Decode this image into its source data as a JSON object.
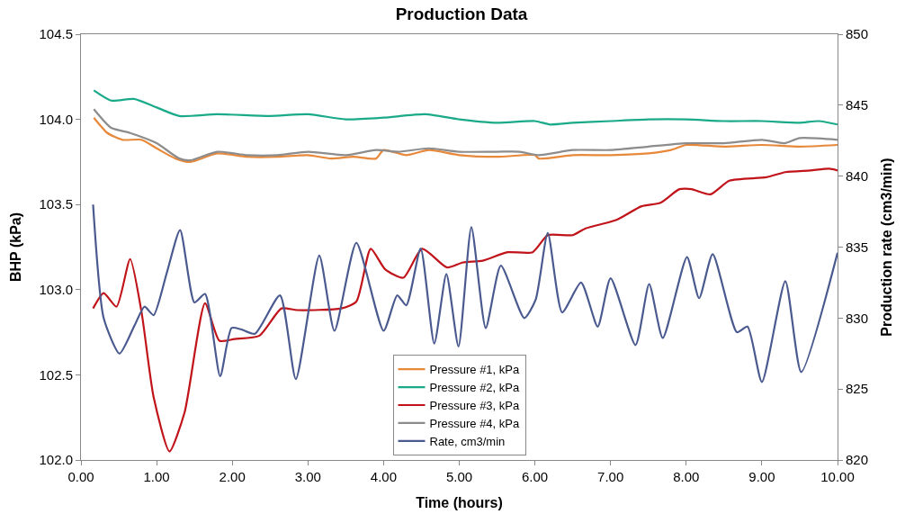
{
  "chart_data": {
    "type": "line",
    "title": "Production Data",
    "xlabel": "Time (hours)",
    "ylabel": "BHP (kPa)",
    "y2label": "Production rate (cm3/min)",
    "xlim": [
      0,
      10
    ],
    "xticks": [
      {
        "value": 0,
        "label": "0.00"
      },
      {
        "value": 1,
        "label": "1.00"
      },
      {
        "value": 2,
        "label": "2.00"
      },
      {
        "value": 3,
        "label": "3.00"
      },
      {
        "value": 4,
        "label": "4.00"
      },
      {
        "value": 5,
        "label": "5.00"
      },
      {
        "value": 6,
        "label": "6.00"
      },
      {
        "value": 7,
        "label": "7.00"
      },
      {
        "value": 8,
        "label": "8.00"
      },
      {
        "value": 9,
        "label": "9.00"
      },
      {
        "value": 10,
        "label": "10.00"
      }
    ],
    "ylim": [
      102,
      104.5
    ],
    "yticks": [
      {
        "value": 102,
        "label": "102.0"
      },
      {
        "value": 102.5,
        "label": "102.5"
      },
      {
        "value": 103,
        "label": "103.0"
      },
      {
        "value": 103.5,
        "label": "103.5"
      },
      {
        "value": 104,
        "label": "104.0"
      },
      {
        "value": 104.5,
        "label": "104.5"
      }
    ],
    "y2lim": [
      820,
      850
    ],
    "y2ticks": [
      820,
      825,
      830,
      835,
      840,
      845,
      850
    ],
    "legend": "bottom",
    "marker": "none",
    "line_style": "solid",
    "series": [
      {
        "name": "Pressure #1, kPa",
        "color": "#e8883a",
        "x": [
          0.17,
          0.35,
          0.55,
          0.8,
          1.0,
          1.25,
          1.45,
          1.8,
          2.2,
          2.6,
          3.0,
          3.3,
          3.6,
          3.9,
          4.0,
          4.3,
          4.6,
          5.0,
          5.5,
          6.0,
          6.05,
          6.5,
          7.0,
          7.5,
          7.8,
          8.0,
          8.5,
          9.0,
          9.5,
          10.0
        ],
        "values": [
          104.01,
          103.92,
          103.88,
          103.88,
          103.83,
          103.77,
          103.75,
          103.8,
          103.78,
          103.78,
          103.79,
          103.77,
          103.78,
          103.77,
          103.82,
          103.79,
          103.82,
          103.79,
          103.78,
          103.79,
          103.77,
          103.79,
          103.79,
          103.8,
          103.82,
          103.85,
          103.84,
          103.85,
          103.84,
          103.85
        ]
      },
      {
        "name": "Pressure #2, kPa",
        "color": "#1aaa8a",
        "x": [
          0.17,
          0.4,
          0.7,
          1.0,
          1.3,
          1.8,
          2.5,
          3.0,
          3.5,
          4.0,
          4.55,
          5.0,
          5.5,
          6.0,
          6.2,
          6.5,
          7.0,
          7.5,
          8.0,
          8.5,
          9.0,
          9.5,
          9.75,
          10.0
        ],
        "values": [
          104.17,
          104.11,
          104.12,
          104.07,
          104.02,
          104.03,
          104.02,
          104.03,
          104.0,
          104.01,
          104.03,
          104.0,
          103.98,
          103.99,
          103.97,
          103.98,
          103.99,
          104.0,
          104.0,
          103.99,
          103.99,
          103.98,
          103.99,
          103.97
        ]
      },
      {
        "name": "Pressure #3, kPa",
        "color": "#c0141a",
        "x": [
          0.16,
          0.3,
          0.47,
          0.65,
          0.8,
          0.96,
          1.17,
          1.37,
          1.64,
          1.83,
          2.03,
          2.36,
          2.65,
          2.86,
          3.44,
          3.64,
          3.83,
          4.02,
          4.26,
          4.51,
          4.84,
          5.05,
          5.31,
          5.64,
          5.97,
          6.17,
          6.5,
          6.67,
          7.08,
          7.41,
          7.66,
          7.91,
          8.07,
          8.32,
          8.57,
          9.06,
          9.31,
          9.64,
          9.89,
          10.0
        ],
        "values": [
          102.89,
          102.98,
          102.9,
          103.18,
          102.87,
          102.37,
          102.05,
          102.28,
          102.92,
          102.7,
          102.71,
          102.73,
          102.89,
          102.88,
          102.89,
          102.93,
          103.24,
          103.12,
          103.07,
          103.24,
          103.13,
          103.16,
          103.17,
          103.22,
          103.22,
          103.32,
          103.32,
          103.36,
          103.41,
          103.49,
          103.51,
          103.59,
          103.59,
          103.56,
          103.64,
          103.66,
          103.69,
          103.7,
          103.71,
          103.7
        ]
      },
      {
        "name": "Pressure #4, kPa",
        "color": "#8c8c8c",
        "x": [
          0.17,
          0.4,
          0.65,
          1.0,
          1.3,
          1.45,
          1.8,
          2.2,
          2.6,
          3.0,
          3.5,
          3.9,
          4.2,
          4.6,
          5.0,
          5.5,
          5.8,
          6.05,
          6.5,
          7.0,
          7.5,
          8.0,
          8.5,
          9.0,
          9.3,
          9.5,
          10.0
        ],
        "values": [
          104.06,
          103.95,
          103.92,
          103.86,
          103.77,
          103.76,
          103.81,
          103.79,
          103.79,
          103.81,
          103.79,
          103.82,
          103.81,
          103.83,
          103.81,
          103.81,
          103.81,
          103.79,
          103.82,
          103.82,
          103.84,
          103.86,
          103.86,
          103.88,
          103.86,
          103.89,
          103.88
        ]
      },
      {
        "name": "Rate, cm3/min",
        "color": "#4a5a8f",
        "axis": "y2",
        "x": [
          0.16,
          0.3,
          0.51,
          0.71,
          0.84,
          0.96,
          1.13,
          1.31,
          1.5,
          1.64,
          1.84,
          1.99,
          2.12,
          2.3,
          2.63,
          2.84,
          3.15,
          3.35,
          3.64,
          4.0,
          4.18,
          4.3,
          4.49,
          4.67,
          4.83,
          4.99,
          5.16,
          5.35,
          5.55,
          5.86,
          6.01,
          6.17,
          6.36,
          6.61,
          6.83,
          7.0,
          7.33,
          7.51,
          7.69,
          8.01,
          8.17,
          8.35,
          8.67,
          8.81,
          9.0,
          9.31,
          9.52,
          10.0
        ],
        "values": [
          838,
          830,
          827.5,
          829.5,
          830.8,
          830.2,
          833.1,
          836.2,
          831.1,
          831.7,
          825.9,
          829.3,
          829.2,
          828.9,
          831.6,
          825.7,
          834.4,
          829.1,
          835.3,
          829.1,
          831.6,
          830.9,
          834.9,
          828.2,
          833.1,
          828,
          836.4,
          829.3,
          833.7,
          830,
          831.3,
          836,
          830.4,
          832.5,
          829.4,
          832.8,
          828.1,
          832.4,
          828.6,
          834.3,
          831.4,
          834.5,
          829,
          829.4,
          825.5,
          832.6,
          826.2,
          834.6
        ]
      }
    ]
  }
}
